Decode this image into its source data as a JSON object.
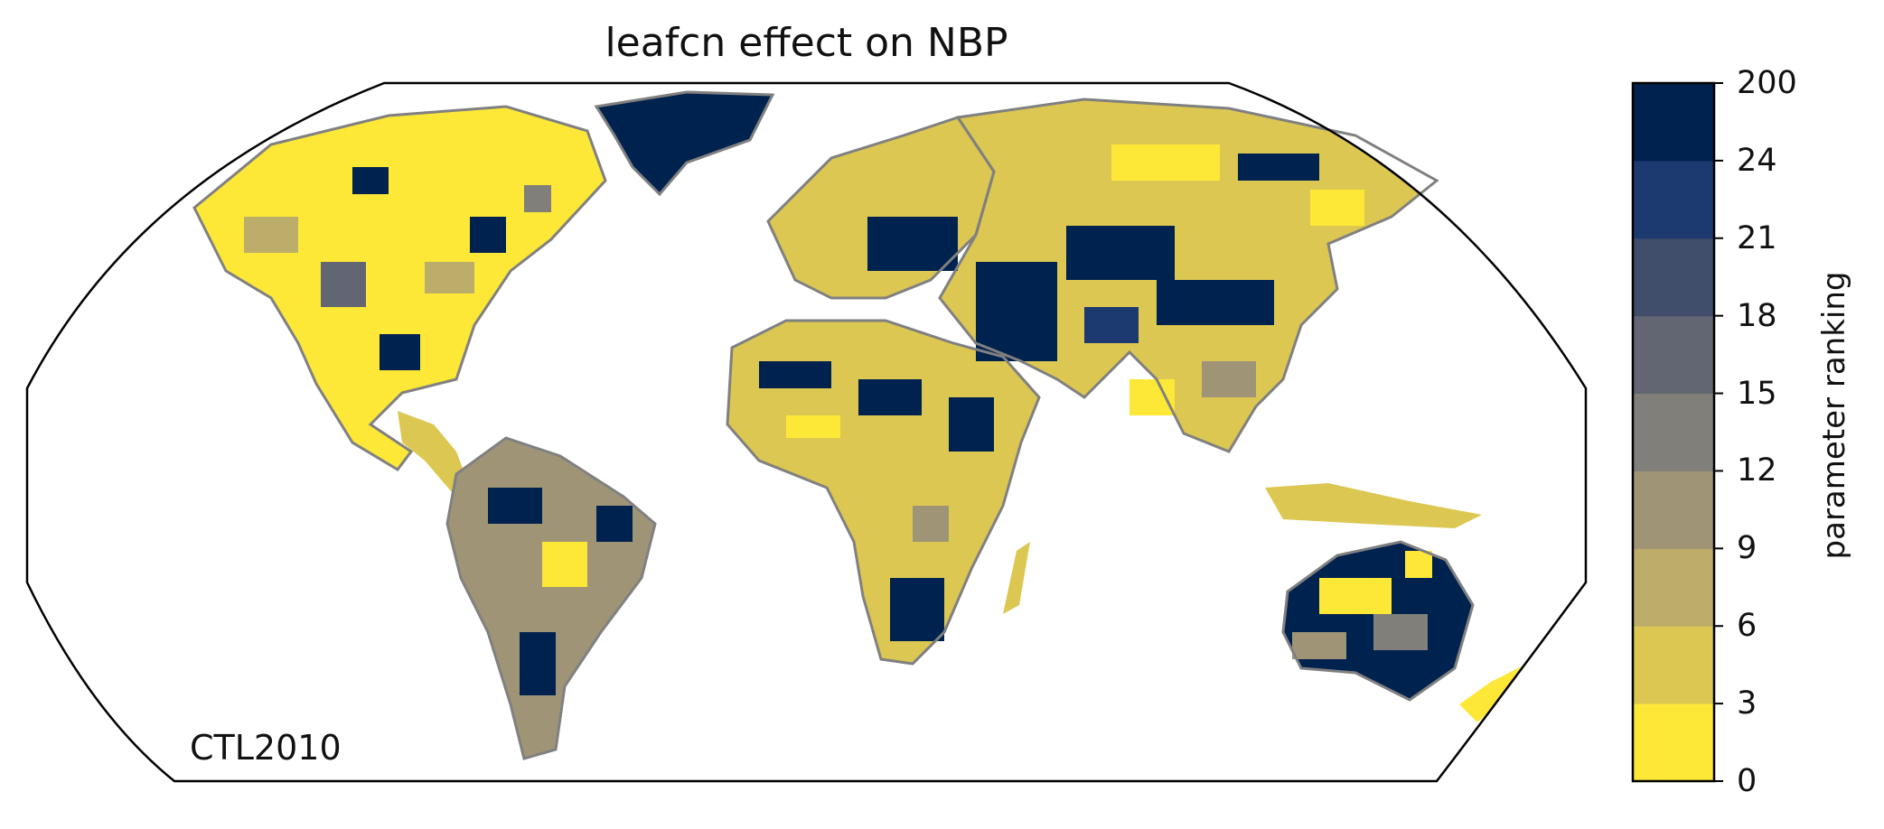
{
  "title": "leafcn effect on NBP",
  "scenario_label": "CTL2010",
  "colorbar": {
    "label": "parameter ranking",
    "ticks": [
      "0",
      "3",
      "6",
      "9",
      "12",
      "15",
      "18",
      "21",
      "24",
      "200"
    ],
    "bounds": [
      0,
      3,
      6,
      9,
      12,
      15,
      18,
      21,
      24,
      200
    ],
    "colors": [
      "#fde837",
      "#dcc752",
      "#bcad6a",
      "#9f9576",
      "#807f79",
      "#626672",
      "#404e6c",
      "#1c3a6f",
      "#00224e"
    ]
  },
  "map": {
    "projection": "Robinson",
    "coastline_color": "#808080",
    "ocean_color": "#ffffff"
  }
}
